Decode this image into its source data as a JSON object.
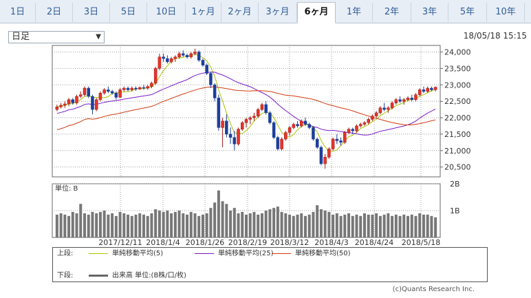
{
  "tabs": [
    {
      "label": "1日"
    },
    {
      "label": "2日"
    },
    {
      "label": "3日"
    },
    {
      "label": "5日"
    },
    {
      "label": "10日"
    },
    {
      "label": "1ヶ月"
    },
    {
      "label": "2ヶ月"
    },
    {
      "label": "3ヶ月"
    },
    {
      "label": "6ヶ月",
      "active": true
    },
    {
      "label": "1年"
    },
    {
      "label": "2年"
    },
    {
      "label": "3年"
    },
    {
      "label": "5年"
    },
    {
      "label": "10年"
    }
  ],
  "period_select": {
    "value": "日足"
  },
  "timestamp": "18/05/18 15:15",
  "chart_data": {
    "type": "candlestick",
    "price_axis": {
      "ylim": [
        20200,
        24200
      ],
      "ticks": [
        "24,000",
        "23,500",
        "23,000",
        "22,500",
        "22,000",
        "21,500",
        "21,000",
        "20,500"
      ],
      "tick_values": [
        24000,
        23500,
        23000,
        22500,
        22000,
        21500,
        21000,
        20500
      ]
    },
    "volume_axis": {
      "label": "単位: B",
      "ylim": [
        0,
        2
      ],
      "ticks": [
        "2B",
        "1B"
      ],
      "tick_values": [
        2,
        1
      ]
    },
    "x_labels": [
      "2017/12/11",
      "2018/1/4",
      "2018/1/26",
      "2018/2/19",
      "2018/3/12",
      "2018/4/3",
      "2018/4/24",
      "2018/5/18"
    ],
    "candles": [
      [
        22250,
        22400,
        22200,
        22330
      ],
      [
        22330,
        22450,
        22280,
        22380
      ],
      [
        22380,
        22500,
        22300,
        22420
      ],
      [
        22420,
        22600,
        22350,
        22550
      ],
      [
        22550,
        22600,
        22400,
        22450
      ],
      [
        22450,
        22700,
        22400,
        22650
      ],
      [
        22650,
        22800,
        22600,
        22700
      ],
      [
        22700,
        22950,
        22650,
        22900
      ],
      [
        22900,
        22950,
        22600,
        22650
      ],
      [
        22650,
        22700,
        22100,
        22250
      ],
      [
        22250,
        22600,
        22200,
        22550
      ],
      [
        22550,
        22800,
        22500,
        22750
      ],
      [
        22750,
        22900,
        22700,
        22850
      ],
      [
        22850,
        22950,
        22750,
        22800
      ],
      [
        22800,
        22850,
        22700,
        22750
      ],
      [
        22750,
        22800,
        22550,
        22620
      ],
      [
        22620,
        22900,
        22600,
        22850
      ],
      [
        22850,
        22950,
        22800,
        22900
      ],
      [
        22900,
        22950,
        22800,
        22850
      ],
      [
        22850,
        22950,
        22800,
        22900
      ],
      [
        22900,
        22950,
        22820,
        22870
      ],
      [
        22870,
        22950,
        22850,
        22920
      ],
      [
        22920,
        23000,
        22850,
        22900
      ],
      [
        22900,
        23000,
        22850,
        22950
      ],
      [
        22950,
        23100,
        22900,
        23050
      ],
      [
        23050,
        23550,
        23000,
        23500
      ],
      [
        23500,
        23950,
        23450,
        23850
      ],
      [
        23850,
        23950,
        23700,
        23800
      ],
      [
        23800,
        23900,
        23650,
        23700
      ],
      [
        23700,
        23850,
        23650,
        23800
      ],
      [
        23800,
        23900,
        23700,
        23850
      ],
      [
        23850,
        24000,
        23800,
        23950
      ],
      [
        23950,
        24050,
        23850,
        23900
      ],
      [
        23900,
        23950,
        23800,
        23850
      ],
      [
        23850,
        24000,
        23800,
        23950
      ],
      [
        23950,
        24100,
        23900,
        24000
      ],
      [
        24000,
        24050,
        23700,
        23750
      ],
      [
        23750,
        23800,
        23550,
        23600
      ],
      [
        23600,
        23650,
        23300,
        23350
      ],
      [
        23350,
        23400,
        22900,
        23000
      ],
      [
        23000,
        23050,
        22500,
        22600
      ],
      [
        22600,
        22700,
        21600,
        21700
      ],
      [
        21700,
        22000,
        21100,
        21900
      ],
      [
        21900,
        22100,
        21400,
        21500
      ],
      [
        21500,
        21700,
        21200,
        21400
      ],
      [
        21400,
        21600,
        21000,
        21200
      ],
      [
        21200,
        21700,
        21150,
        21650
      ],
      [
        21650,
        21900,
        21600,
        21850
      ],
      [
        21850,
        22000,
        21700,
        21950
      ],
      [
        21950,
        22050,
        21800,
        22000
      ],
      [
        22000,
        22150,
        21900,
        22050
      ],
      [
        22050,
        22300,
        22000,
        22250
      ],
      [
        22250,
        22450,
        22200,
        22400
      ],
      [
        22400,
        22500,
        22100,
        22150
      ],
      [
        22150,
        22200,
        21800,
        21850
      ],
      [
        21850,
        21900,
        21350,
        21400
      ],
      [
        21400,
        21450,
        21000,
        21050
      ],
      [
        21050,
        21400,
        21000,
        21350
      ],
      [
        21350,
        21600,
        21300,
        21550
      ],
      [
        21550,
        21750,
        21450,
        21700
      ],
      [
        21700,
        21850,
        21650,
        21800
      ],
      [
        21800,
        21900,
        21700,
        21750
      ],
      [
        21750,
        21950,
        21700,
        21900
      ],
      [
        21900,
        22000,
        21750,
        21800
      ],
      [
        21800,
        21850,
        21650,
        21700
      ],
      [
        21700,
        21750,
        21300,
        21350
      ],
      [
        21350,
        21400,
        21050,
        21100
      ],
      [
        21100,
        21150,
        20550,
        20600
      ],
      [
        20600,
        20900,
        20450,
        20800
      ],
      [
        20800,
        21100,
        20750,
        21050
      ],
      [
        21050,
        21400,
        21000,
        21350
      ],
      [
        21350,
        21500,
        21200,
        21300
      ],
      [
        21300,
        21400,
        21150,
        21250
      ],
      [
        21250,
        21600,
        21200,
        21550
      ],
      [
        21550,
        21700,
        21500,
        21650
      ],
      [
        21650,
        21700,
        21500,
        21600
      ],
      [
        21600,
        21800,
        21550,
        21750
      ],
      [
        21750,
        21850,
        21700,
        21800
      ],
      [
        21800,
        21900,
        21750,
        21850
      ],
      [
        21850,
        22000,
        21800,
        21950
      ],
      [
        21950,
        22100,
        21900,
        22050
      ],
      [
        22050,
        22200,
        22000,
        22150
      ],
      [
        22150,
        22350,
        22100,
        22300
      ],
      [
        22300,
        22450,
        22200,
        22250
      ],
      [
        22250,
        22350,
        22150,
        22300
      ],
      [
        22300,
        22500,
        22250,
        22450
      ],
      [
        22450,
        22600,
        22400,
        22550
      ],
      [
        22550,
        22650,
        22450,
        22500
      ],
      [
        22500,
        22600,
        22400,
        22550
      ],
      [
        22550,
        22650,
        22500,
        22600
      ],
      [
        22600,
        22700,
        22500,
        22550
      ],
      [
        22550,
        22750,
        22500,
        22700
      ],
      [
        22700,
        22900,
        22650,
        22850
      ],
      [
        22850,
        22950,
        22750,
        22800
      ],
      [
        22800,
        22950,
        22750,
        22900
      ],
      [
        22900,
        22950,
        22800,
        22850
      ],
      [
        22850,
        22950,
        22800,
        22930
      ]
    ],
    "volumes": [
      0.85,
      0.9,
      0.85,
      0.8,
      0.95,
      0.9,
      1.25,
      0.9,
      0.85,
      0.95,
      0.9,
      0.95,
      1.0,
      0.85,
      0.9,
      0.8,
      0.95,
      0.9,
      0.85,
      0.8,
      0.85,
      0.9,
      0.85,
      0.8,
      0.9,
      1.05,
      1.0,
      0.95,
      1.0,
      0.9,
      0.95,
      1.0,
      0.9,
      0.85,
      0.95,
      0.9,
      0.8,
      0.85,
      0.9,
      1.1,
      1.3,
      1.75,
      1.35,
      1.25,
      1.0,
      1.1,
      0.9,
      0.95,
      0.85,
      0.9,
      0.95,
      0.85,
      0.9,
      1.0,
      1.05,
      1.1,
      1.15,
      0.95,
      0.9,
      0.85,
      0.8,
      0.85,
      0.9,
      0.8,
      0.85,
      0.95,
      1.2,
      1.05,
      1.0,
      0.95,
      0.85,
      0.9,
      0.8,
      0.85,
      0.9,
      0.8,
      0.85,
      0.8,
      0.9,
      0.85,
      0.85,
      0.9,
      0.8,
      0.85,
      0.9,
      0.8,
      0.85,
      0.8,
      0.85,
      0.8,
      0.85,
      0.8,
      0.9,
      0.85,
      0.85,
      0.8,
      0.75
    ],
    "series": [
      {
        "name": "単純移動平均(5)",
        "color": "#a8c300"
      },
      {
        "name": "単純移動平均(25)",
        "color": "#7a18c8"
      },
      {
        "name": "単純移動平均(50)",
        "color": "#d03a10"
      }
    ]
  },
  "legend": {
    "upper_label": "上段:",
    "lower_label": "下段:",
    "lower_series": {
      "name": "出来高 単位:(B株/口/枚)",
      "color": "#666666"
    }
  },
  "credit": "(c)Quants Research Inc."
}
